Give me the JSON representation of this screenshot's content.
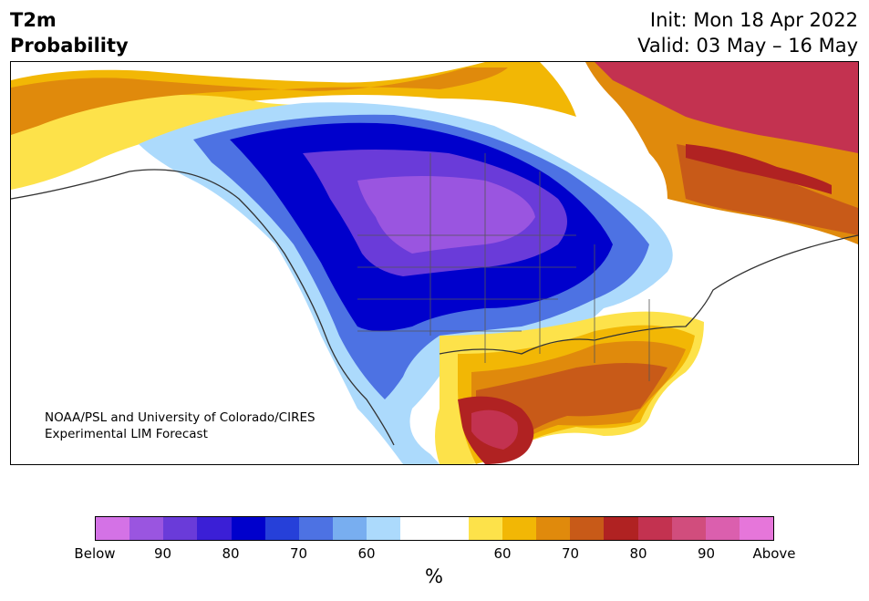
{
  "header": {
    "title_line1": "T2m",
    "title_line2": "Probability",
    "init": "Init: Mon 18 Apr 2022",
    "valid": "Valid: 03 May – 16 May"
  },
  "map": {
    "credit_line1": "NOAA/PSL and University of Colorado/CIRES",
    "credit_line2": "Experimental LIM Forecast"
  },
  "colorbar": {
    "colors": [
      "#d472e6",
      "#9a55e0",
      "#6a3bd9",
      "#3b1fd6",
      "#0000cc",
      "#2640d9",
      "#4d72e3",
      "#78aef0",
      "#acdafc",
      "#ffffff",
      "#ffffff",
      "#fde24a",
      "#f2b705",
      "#e08a0c",
      "#c85a18",
      "#b02222",
      "#c33250",
      "#d14d7d",
      "#db5fae",
      "#e676da"
    ],
    "tick_labels": [
      "Below",
      "90",
      "80",
      "70",
      "60",
      "60",
      "70",
      "80",
      "90",
      "Above"
    ],
    "unit": "%"
  }
}
